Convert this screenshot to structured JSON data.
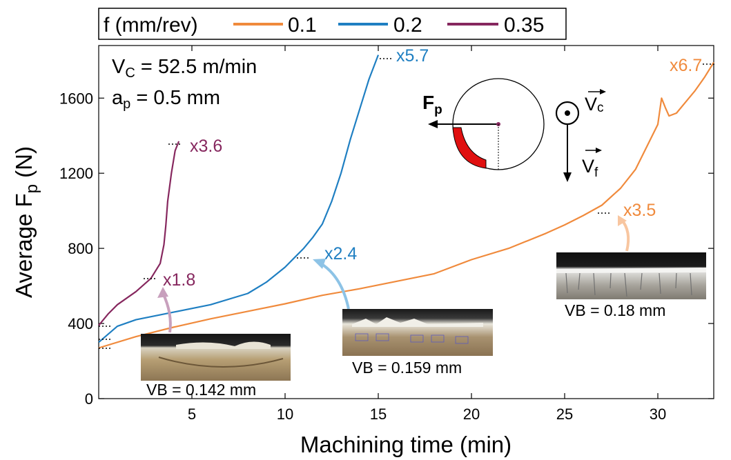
{
  "colors": {
    "f01": "#f08a3c",
    "f02": "#1f7fc2",
    "f035": "#86275e",
    "axis": "#000000",
    "tool_wear": "#e01010"
  },
  "legend": {
    "title": "f (mm/rev)",
    "items": [
      "0.1",
      "0.2",
      "0.35"
    ]
  },
  "conditions": {
    "vc_label": "V",
    "vc_sub": "C",
    "vc_value": " = 52.5 m/min",
    "ap_label": "a",
    "ap_sub": "p",
    "ap_value": " = 0.5 mm"
  },
  "diagram": {
    "fp_label": "F",
    "fp_sub": "p",
    "vc_label": "V",
    "vc_sub": "c",
    "vf_label": "V",
    "vf_sub": "f",
    "vc_icon": "out-of-plane-arrow-icon",
    "vf_icon": "down-arrow-icon"
  },
  "ratio_labels": {
    "f035_a": "x1.8",
    "f035_b": "x3.6",
    "f02_a": "x2.4",
    "f02_b": "x5.7",
    "f01_a": "x3.5",
    "f01_b": "x6.7"
  },
  "insets": {
    "vb1": "VB = 0.142 mm",
    "vb2": "VB = 0.159 mm",
    "vb3": "VB = 0.18 mm"
  },
  "chart_data": {
    "type": "line",
    "xlabel": "Machining time (min)",
    "ylabel_main": "Average F",
    "ylabel_sub": "p",
    "ylabel_unit": " (N)",
    "xlim": [
      0,
      33
    ],
    "ylim": [
      0,
      1880
    ],
    "xticks": [
      5,
      10,
      15,
      20,
      25,
      30
    ],
    "yticks": [
      0,
      400,
      800,
      1200,
      1600
    ],
    "series": [
      {
        "name": "0.1",
        "x": [
          0,
          2,
          4,
          6,
          8,
          10,
          12,
          14,
          16,
          18,
          20,
          22,
          24,
          25,
          26,
          27,
          28,
          28.8,
          29.5,
          30,
          30.2,
          30.4,
          30.6,
          31,
          31.5,
          32,
          32.5,
          33
        ],
        "y": [
          270,
          330,
          380,
          425,
          465,
          505,
          550,
          585,
          625,
          665,
          740,
          800,
          880,
          925,
          975,
          1030,
          1120,
          1220,
          1360,
          1460,
          1600,
          1550,
          1505,
          1520,
          1580,
          1640,
          1710,
          1790
        ]
      },
      {
        "name": "0.2",
        "x": [
          0,
          1,
          2,
          4,
          6,
          8,
          9,
          10,
          10.5,
          11,
          11.5,
          12,
          12.5,
          13,
          13.5,
          14,
          14.5,
          15
        ],
        "y": [
          300,
          385,
          420,
          460,
          500,
          560,
          620,
          700,
          750,
          800,
          860,
          930,
          1050,
          1200,
          1380,
          1540,
          1700,
          1830
        ]
      },
      {
        "name": "0.35",
        "x": [
          0,
          0.5,
          1,
          2,
          2.8,
          3.3,
          3.5,
          3.6,
          3.7,
          3.9,
          4.1,
          4.3
        ],
        "y": [
          390,
          450,
          500,
          570,
          640,
          720,
          820,
          920,
          1050,
          1200,
          1320,
          1370
        ]
      }
    ],
    "grid": false
  }
}
